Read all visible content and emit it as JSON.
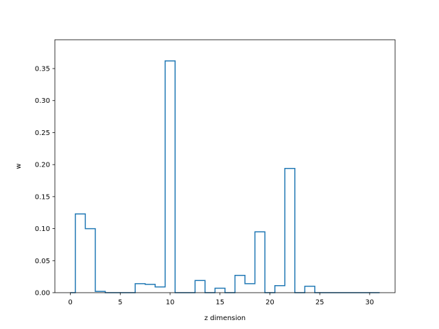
{
  "chart_data": {
    "type": "step",
    "title": "",
    "xlabel": "z dimension",
    "ylabel": "w",
    "xlim": [
      -1.55,
      32.55
    ],
    "ylim": [
      0,
      0.395
    ],
    "x": [
      0,
      1,
      2,
      3,
      4,
      5,
      6,
      7,
      8,
      9,
      10,
      11,
      12,
      13,
      14,
      15,
      16,
      17,
      18,
      19,
      20,
      21,
      22,
      23,
      24,
      25,
      26,
      27,
      28,
      29,
      30,
      31
    ],
    "values": [
      0.0,
      0.123,
      0.1,
      0.002,
      0.0,
      0.0,
      0.0,
      0.014,
      0.013,
      0.009,
      0.362,
      0.0,
      0.0,
      0.019,
      0.0,
      0.007,
      0.0,
      0.027,
      0.014,
      0.095,
      0.0,
      0.011,
      0.194,
      0.0,
      0.01,
      0.0,
      0.0,
      0.0,
      0.0,
      0.0,
      0.0,
      0.0
    ],
    "x_ticks": [
      0,
      5,
      10,
      15,
      20,
      25,
      30
    ],
    "y_ticks": [
      0.0,
      0.05,
      0.1,
      0.15,
      0.2,
      0.25,
      0.3,
      0.35
    ],
    "x_tick_labels": [
      "0",
      "5",
      "10",
      "15",
      "20",
      "25",
      "30"
    ],
    "y_tick_labels": [
      "0.00",
      "0.05",
      "0.10",
      "0.15",
      "0.20",
      "0.25",
      "0.30",
      "0.35"
    ],
    "grid": false,
    "colors": {
      "line": "#1f77b4",
      "axes": "#000000"
    }
  }
}
